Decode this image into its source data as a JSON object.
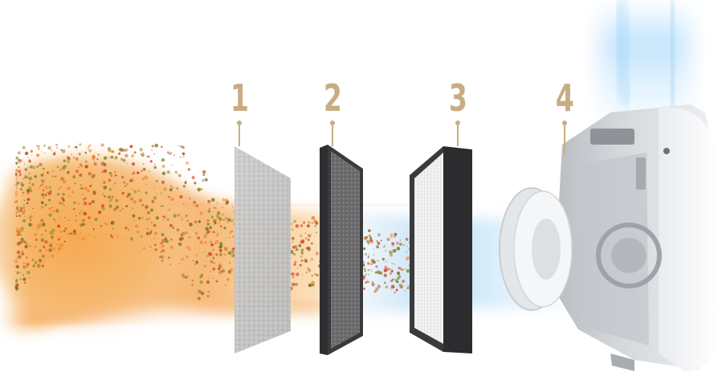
{
  "stages": [
    {
      "number": "1",
      "name": "pre-filter"
    },
    {
      "number": "2",
      "name": "carbon-filter"
    },
    {
      "number": "3",
      "name": "hepa-filter"
    },
    {
      "number": "4",
      "name": "fan-unit"
    }
  ],
  "colors": {
    "label_gold": "#c8ad82",
    "polluted_orange": "#f08a30",
    "polluted_red": "#d8432c",
    "particle_olive": "#8a8a2a",
    "clean_blue": "#7fc2f2",
    "frame_dark": "#3a3a3c",
    "housing_grey": "#cfd2d6"
  },
  "icons": [
    "pre-filter-panel-icon",
    "carbon-filter-panel-icon",
    "hepa-filter-panel-icon",
    "blower-fan-icon",
    "purifier-housing-icon"
  ]
}
